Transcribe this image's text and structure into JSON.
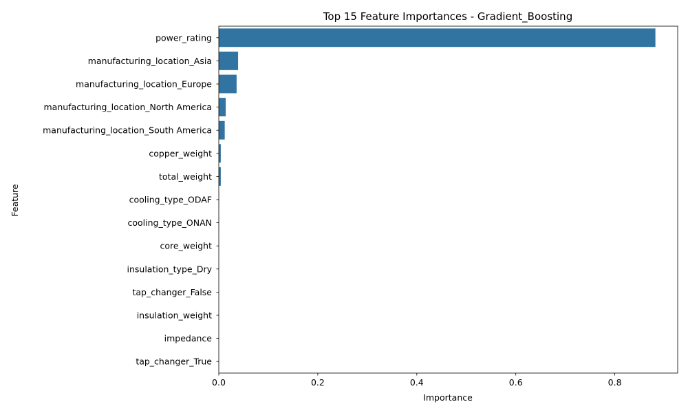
{
  "chart_data": {
    "type": "bar",
    "orientation": "horizontal",
    "title": "Top 15 Feature Importances - Gradient_Boosting",
    "xlabel": "Importance",
    "ylabel": "Feature",
    "categories": [
      "power_rating",
      "manufacturing_location_Asia",
      "manufacturing_location_Europe",
      "manufacturing_location_North America",
      "manufacturing_location_South America",
      "copper_weight",
      "total_weight",
      "cooling_type_ODAF",
      "cooling_type_ONAN",
      "core_weight",
      "insulation_type_Dry",
      "tap_changer_False",
      "insulation_weight",
      "impedance",
      "tap_changer_True"
    ],
    "values": [
      0.882,
      0.039,
      0.036,
      0.014,
      0.012,
      0.004,
      0.004,
      0.0005,
      0.0004,
      0.0003,
      0.0002,
      0.0002,
      0.0002,
      0.0001,
      0.0001
    ],
    "xlim": [
      0,
      0.927
    ],
    "xticks": [
      0.0,
      0.2,
      0.4,
      0.6,
      0.8
    ],
    "xtick_labels": [
      "0.0",
      "0.2",
      "0.4",
      "0.6",
      "0.8"
    ],
    "grid": false,
    "bar_color": "#3274a1"
  }
}
